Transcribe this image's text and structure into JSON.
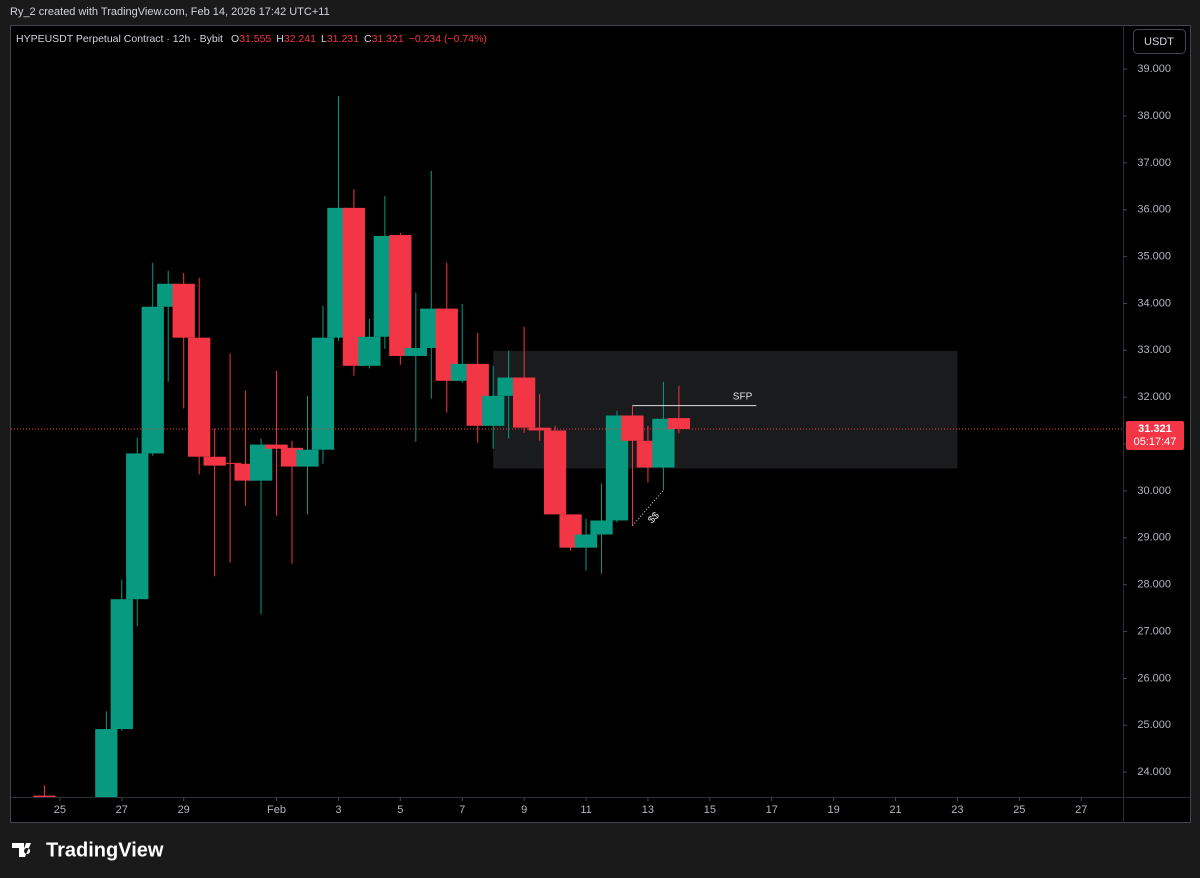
{
  "created_by": "Ry_2 created with TradingView.com, Feb 14, 2026 17:42 UTC+11",
  "currency_button": "USDT",
  "brand": "TradingView",
  "chart_data": {
    "type": "candlestick",
    "title": "HYPEUSDT Perpetual Contract · 12h · Bybit",
    "ohlc_prefixes": [
      "O",
      "H",
      "L",
      "C"
    ],
    "change_text": "−0.234 (−0.74%)",
    "countdown": "05:17:47",
    "up_color": "#089981",
    "down_color": "#f23645",
    "x": [
      24.5,
      26.5,
      27,
      27.5,
      28,
      28.5,
      29,
      29.5,
      30,
      30.5,
      31,
      31.5,
      32,
      32.5,
      33,
      33.5,
      34,
      34.5,
      35,
      35.5,
      36,
      36.5,
      37,
      37.5,
      38,
      38.5,
      39,
      39.5,
      40,
      40.5,
      41,
      41.5,
      42,
      42.5,
      43,
      43.5,
      44,
      44.5,
      45
    ],
    "open": [
      23.5,
      23.4,
      24.92,
      27.69,
      30.8,
      33.93,
      34.42,
      33.27,
      30.73,
      30.6,
      30.58,
      30.22,
      30.99,
      30.92,
      30.52,
      30.88,
      33.27,
      36.04,
      32.67,
      33.29,
      35.46,
      32.88,
      33.05,
      33.89,
      32.35,
      32.71,
      31.39,
      32.03,
      32.42,
      31.35,
      31.29,
      29.5,
      28.79,
      29.07,
      29.37,
      31.61,
      31.07,
      30.5,
      31.555
    ],
    "high": [
      23.72,
      25.3,
      28.11,
      31.14,
      34.87,
      34.7,
      34.65,
      34.55,
      31.33,
      32.93,
      32.14,
      31.12,
      32.56,
      31.07,
      32.03,
      33.95,
      38.42,
      36.44,
      33.67,
      36.29,
      35.51,
      34.23,
      36.83,
      34.87,
      33.99,
      33.37,
      32.67,
      32.99,
      33.5,
      32.07,
      31.39,
      29.5,
      29.41,
      30.16,
      31.71,
      31.82,
      31.39,
      32.33,
      32.241
    ],
    "low": [
      23.2,
      23.3,
      24.88,
      27.11,
      30.75,
      32.33,
      31.76,
      30.35,
      28.18,
      28.47,
      29.69,
      27.37,
      29.47,
      28.45,
      29.5,
      30.58,
      33.2,
      32.46,
      32.61,
      33.03,
      32.69,
      31.05,
      31.97,
      31.67,
      32.31,
      31.03,
      30.9,
      31.12,
      31.24,
      31.07,
      29.5,
      28.73,
      28.3,
      28.24,
      29.33,
      29.26,
      30.18,
      30.01,
      31.231
    ],
    "close": [
      23.3,
      24.92,
      27.69,
      30.8,
      33.93,
      34.42,
      33.27,
      30.73,
      30.54,
      30.58,
      30.22,
      30.99,
      30.9,
      30.52,
      30.88,
      33.27,
      36.04,
      32.67,
      33.29,
      35.44,
      32.88,
      33.05,
      33.89,
      32.35,
      32.71,
      31.39,
      32.03,
      32.42,
      31.35,
      31.29,
      29.5,
      28.79,
      29.07,
      29.37,
      31.61,
      31.07,
      30.5,
      31.54,
      31.321
    ],
    "xlim": [
      23.42,
      59.35
    ],
    "ylim": [
      23.47,
      39.92
    ],
    "xticks": [
      25,
      27,
      29,
      {
        "value": 32,
        "label": "Feb"
      },
      {
        "value": 34,
        "label": "3"
      },
      {
        "value": 36,
        "label": "5"
      },
      {
        "value": 38,
        "label": "7"
      },
      {
        "value": 40,
        "label": "9"
      },
      {
        "value": 42,
        "label": "11"
      },
      {
        "value": 44,
        "label": "13"
      },
      {
        "value": 46,
        "label": "15"
      },
      {
        "value": 48,
        "label": "17"
      },
      {
        "value": 50,
        "label": "19"
      },
      {
        "value": 52,
        "label": "21"
      },
      {
        "value": 54,
        "label": "23"
      },
      {
        "value": 56,
        "label": "25"
      },
      {
        "value": 58,
        "label": "27"
      }
    ],
    "yticks": [
      {
        "value": 24,
        "label": "24.000"
      },
      {
        "value": 25,
        "label": "25.000"
      },
      {
        "value": 26,
        "label": "26.000"
      },
      {
        "value": 27,
        "label": "27.000"
      },
      {
        "value": 28,
        "label": "28.000"
      },
      {
        "value": 29,
        "label": "29.000"
      },
      {
        "value": 30,
        "label": "30.000"
      },
      {
        "value": 31,
        "label": "31.000"
      },
      {
        "value": 32,
        "label": "32.000"
      },
      {
        "value": 33,
        "label": "33.000"
      },
      {
        "value": 34,
        "label": "34.000"
      },
      {
        "value": 35,
        "label": "35.000"
      },
      {
        "value": 36,
        "label": "36.000"
      },
      {
        "value": 37,
        "label": "37.000"
      },
      {
        "value": 38,
        "label": "38.000"
      },
      {
        "value": 39,
        "label": "39.000"
      }
    ],
    "zone": {
      "x": [
        39,
        54
      ],
      "y": [
        30.48,
        32.99
      ]
    },
    "sfp": {
      "label": "SFP",
      "x": [
        43.5,
        47.5
      ],
      "y": 31.82
    },
    "liquidity": {
      "label": "$$",
      "x": [
        43.5,
        44.5
      ],
      "y": [
        29.26,
        30.01
      ]
    }
  }
}
